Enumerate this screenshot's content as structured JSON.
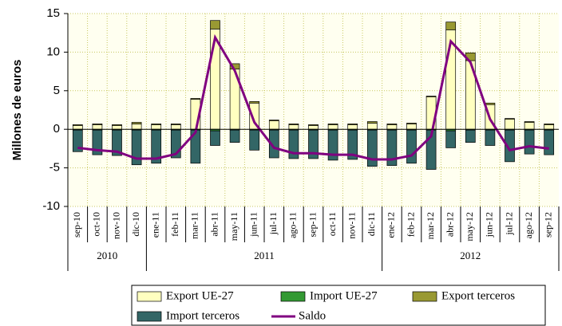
{
  "chart_data": {
    "type": "bar",
    "y_label": "Millones de euros",
    "categories": [
      "sep-10",
      "oct-10",
      "nov-10",
      "dic-10",
      "ene-11",
      "feb-11",
      "mar-11",
      "abr-11",
      "may-11",
      "jun-11",
      "jul-11",
      "ago-11",
      "sep-11",
      "oct-11",
      "nov-11",
      "dic-11",
      "ene-12",
      "feb-12",
      "mar-12",
      "abr-12",
      "may-12",
      "jun-12",
      "jul-12",
      "ago-12",
      "sep-12"
    ],
    "year_groups": [
      {
        "label": "2010",
        "count": 4
      },
      {
        "label": "2011",
        "count": 12
      },
      {
        "label": "2012",
        "count": 9
      }
    ],
    "series": [
      {
        "name": "Export UE-27",
        "color": "#ffffc0",
        "kind": "bar",
        "values": [
          0.5,
          0.6,
          0.5,
          0.7,
          0.6,
          0.6,
          3.9,
          13,
          7.8,
          3.4,
          1.1,
          0.6,
          0.5,
          0.6,
          0.6,
          0.8,
          0.6,
          0.7,
          4.2,
          12.9,
          8.9,
          3.2,
          1.3,
          0.9,
          0.6
        ]
      },
      {
        "name": "Import UE-27",
        "color": "#339933",
        "kind": "bar",
        "values": [
          -0.1,
          -0.1,
          -0.1,
          -0.1,
          -0.1,
          -0.1,
          -0.1,
          -0.2,
          -0.1,
          -0.1,
          -0.1,
          -0.1,
          -0.1,
          -0.1,
          -0.1,
          -0.1,
          -0.1,
          -0.1,
          -0.1,
          -0.2,
          -0.1,
          -0.1,
          -0.1,
          -0.1,
          -0.1
        ]
      },
      {
        "name": "Export terceros",
        "color": "#999933",
        "kind": "bar",
        "values": [
          0.1,
          0.1,
          0.1,
          0.2,
          0.1,
          0.1,
          0.1,
          1.1,
          0.7,
          0.2,
          0.1,
          0.1,
          0.1,
          0.1,
          0.1,
          0.2,
          0.1,
          0.1,
          0.1,
          1.0,
          1.0,
          0.2,
          0.1,
          0.1,
          0.1
        ]
      },
      {
        "name": "Import terceros",
        "color": "#336666",
        "kind": "bar",
        "values": [
          -2.8,
          -3.2,
          -3.3,
          -4.5,
          -4.3,
          -3.6,
          -4.3,
          -1.9,
          -1.6,
          -2.6,
          -3.6,
          -3.7,
          -3.7,
          -3.9,
          -3.8,
          -4.7,
          -4.6,
          -4.3,
          -5.1,
          -2.2,
          -1.6,
          -2.0,
          -4.1,
          -3.1,
          -3.2
        ]
      },
      {
        "name": "Saldo",
        "color": "#800080",
        "kind": "line",
        "values": [
          -2.4,
          -2.7,
          -2.9,
          -3.8,
          -3.8,
          -3.2,
          -0.4,
          11.9,
          7.6,
          0.9,
          -2.4,
          -3.1,
          -3.1,
          -3.3,
          -3.3,
          -3.9,
          -3.9,
          -3.4,
          -0.9,
          11.4,
          8.7,
          1.3,
          -2.7,
          -2.2,
          -2.5
        ]
      }
    ],
    "ylim": [
      -10,
      15
    ],
    "yticks": [
      -10,
      -5,
      0,
      5,
      10,
      15
    ],
    "grid": true
  }
}
